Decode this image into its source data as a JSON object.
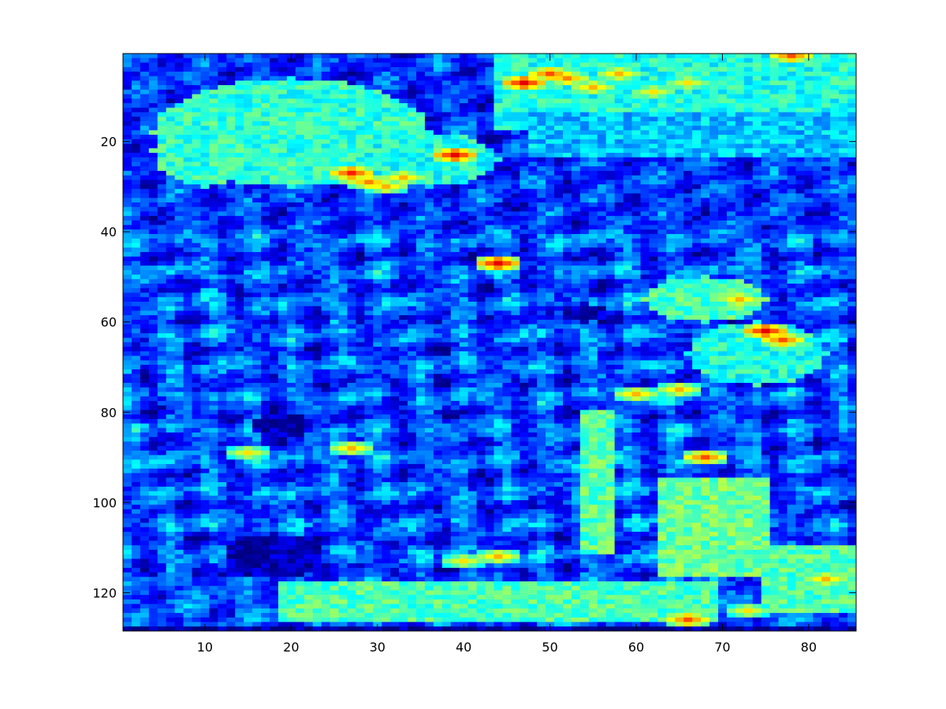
{
  "chart_data": {
    "type": "heatmap",
    "title": "",
    "xlabel": "",
    "ylabel": "",
    "xlim": [
      0.5,
      85.5
    ],
    "ylim": [
      0.5,
      128.5
    ],
    "y_reversed": true,
    "n_cols": 85,
    "n_rows": 128,
    "colormap": "jet",
    "clim": [
      0,
      1
    ],
    "x_ticks": [
      10,
      20,
      30,
      40,
      50,
      60,
      70,
      80
    ],
    "y_ticks": [
      20,
      40,
      60,
      80,
      100,
      120
    ],
    "x_tick_labels": [
      "10",
      "20",
      "30",
      "40",
      "50",
      "60",
      "70",
      "80"
    ],
    "y_tick_labels": [
      "20",
      "40",
      "60",
      "80",
      "100",
      "120"
    ],
    "grid": false,
    "legend": "none",
    "regions": [
      {
        "kind": "ellipse",
        "cx": 20,
        "cy": 18,
        "rx": 16,
        "ry": 12,
        "level": 0.42
      },
      {
        "kind": "ellipse",
        "cx": 10,
        "cy": 22,
        "rx": 6,
        "ry": 8,
        "level": 0.42
      },
      {
        "kind": "ellipse",
        "cx": 36,
        "cy": 24,
        "rx": 8,
        "ry": 6,
        "level": 0.4
      },
      {
        "kind": "rect",
        "x0": 44,
        "x1": 86,
        "y0": 1,
        "y1": 18,
        "level": 0.4
      },
      {
        "kind": "rect",
        "x0": 48,
        "x1": 86,
        "y0": 14,
        "y1": 24,
        "level": 0.32
      },
      {
        "kind": "rect",
        "x0": 63,
        "x1": 76,
        "y0": 95,
        "y1": 117,
        "level": 0.48
      },
      {
        "kind": "rect",
        "x0": 75,
        "x1": 86,
        "y0": 110,
        "y1": 125,
        "level": 0.45
      },
      {
        "kind": "rect",
        "x0": 19,
        "x1": 70,
        "y0": 118,
        "y1": 127,
        "level": 0.45
      },
      {
        "kind": "rect",
        "x0": 54,
        "x1": 58,
        "y0": 80,
        "y1": 112,
        "level": 0.46
      },
      {
        "kind": "ellipse",
        "cx": 68,
        "cy": 55,
        "rx": 7,
        "ry": 5,
        "level": 0.45
      },
      {
        "kind": "ellipse",
        "cx": 74,
        "cy": 67,
        "rx": 8,
        "ry": 7,
        "level": 0.4
      },
      {
        "kind": "ellipse",
        "cx": 19,
        "cy": 83,
        "rx": 3.5,
        "ry": 3,
        "level": 0.05
      },
      {
        "kind": "ellipse",
        "cx": 18,
        "cy": 112,
        "rx": 5.5,
        "ry": 5,
        "level": 0.05
      },
      {
        "kind": "ellipse",
        "cx": 54,
        "cy": 58,
        "rx": 2.5,
        "ry": 2,
        "level": 0.05
      },
      {
        "kind": "rect",
        "x0": 1,
        "x1": 86,
        "y0": 128,
        "y1": 129,
        "level": 0.02
      }
    ],
    "hot_spots": [
      {
        "x": 47,
        "y": 7,
        "value": 0.9
      },
      {
        "x": 50,
        "y": 5,
        "value": 0.8
      },
      {
        "x": 52,
        "y": 6,
        "value": 0.75
      },
      {
        "x": 55,
        "y": 8,
        "value": 0.7
      },
      {
        "x": 58,
        "y": 5,
        "value": 0.7
      },
      {
        "x": 62,
        "y": 9,
        "value": 0.65
      },
      {
        "x": 66,
        "y": 7,
        "value": 0.65
      },
      {
        "x": 78,
        "y": 1,
        "value": 0.8
      },
      {
        "x": 27,
        "y": 27,
        "value": 0.85
      },
      {
        "x": 29,
        "y": 29,
        "value": 0.75
      },
      {
        "x": 31,
        "y": 30,
        "value": 0.7
      },
      {
        "x": 33,
        "y": 28,
        "value": 0.7
      },
      {
        "x": 39,
        "y": 23,
        "value": 0.9
      },
      {
        "x": 44,
        "y": 47,
        "value": 0.9
      },
      {
        "x": 72,
        "y": 55,
        "value": 0.7
      },
      {
        "x": 75,
        "y": 62,
        "value": 0.9
      },
      {
        "x": 77,
        "y": 64,
        "value": 0.8
      },
      {
        "x": 60,
        "y": 76,
        "value": 0.7
      },
      {
        "x": 65,
        "y": 75,
        "value": 0.7
      },
      {
        "x": 27,
        "y": 88,
        "value": 0.7
      },
      {
        "x": 15,
        "y": 89,
        "value": 0.65
      },
      {
        "x": 68,
        "y": 90,
        "value": 0.8
      },
      {
        "x": 44,
        "y": 112,
        "value": 0.7
      },
      {
        "x": 40,
        "y": 113,
        "value": 0.65
      },
      {
        "x": 73,
        "y": 124,
        "value": 0.65
      },
      {
        "x": 66,
        "y": 126,
        "value": 0.8
      },
      {
        "x": 82,
        "y": 117,
        "value": 0.7
      }
    ]
  }
}
